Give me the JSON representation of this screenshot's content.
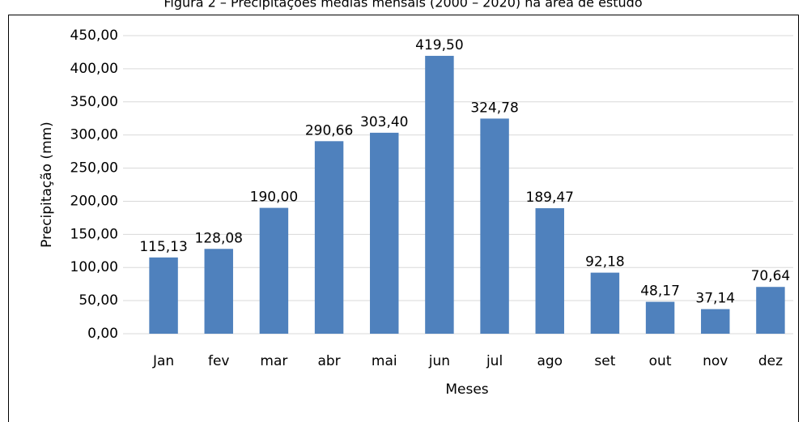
{
  "chart_data": {
    "type": "bar",
    "title": "Figura 2 – Precipitações médias mensais (2000 – 2020) na área de estudo",
    "x_label": "Meses",
    "y_label": "Precipitação (mm)",
    "categories": [
      "Jan",
      "fev",
      "mar",
      "abr",
      "mai",
      "jun",
      "jul",
      "ago",
      "set",
      "out",
      "nov",
      "dez"
    ],
    "values": [
      115.13,
      128.08,
      190.0,
      290.66,
      303.4,
      419.5,
      324.78,
      189.47,
      92.18,
      48.17,
      37.14,
      70.64
    ],
    "value_labels": [
      "115,13",
      "128,08",
      "190,00",
      "290,66",
      "303,40",
      "419,50",
      "324,78",
      "189,47",
      "92,18",
      "48,17",
      "37,14",
      "70,64"
    ],
    "color": "#4f81bd",
    "ylim": [
      0,
      450
    ],
    "yticks": [
      {
        "value": 0,
        "label": "0,00"
      },
      {
        "value": 50,
        "label": "50,00"
      },
      {
        "value": 100,
        "label": "100,00"
      },
      {
        "value": 150,
        "label": "150,00"
      },
      {
        "value": 200,
        "label": "200,00"
      },
      {
        "value": 250,
        "label": "250,00"
      },
      {
        "value": 300,
        "label": "300,00"
      },
      {
        "value": 350,
        "label": "350,00"
      },
      {
        "value": 400,
        "label": "400,00"
      },
      {
        "value": 450,
        "label": "450,00"
      }
    ],
    "grid": true
  }
}
